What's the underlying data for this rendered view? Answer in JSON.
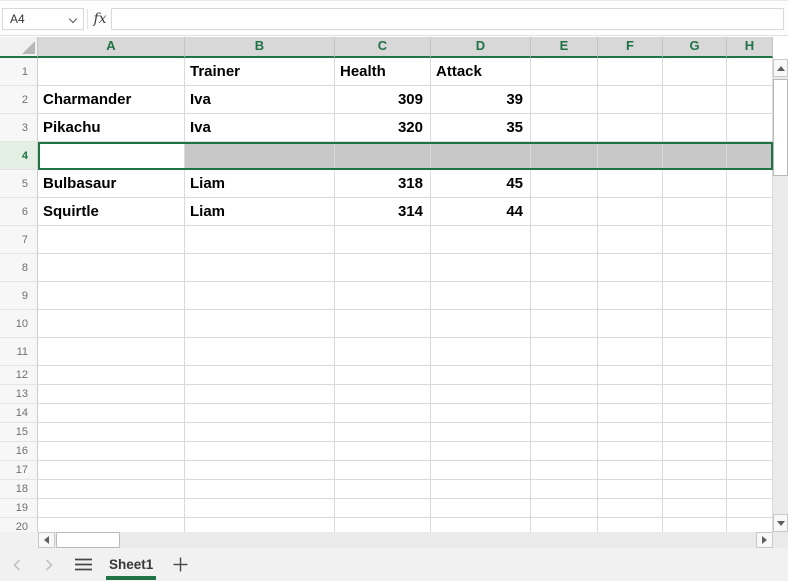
{
  "formula_bar": {
    "name_box_value": "A4",
    "fx_label": "fx",
    "formula_value": ""
  },
  "grid": {
    "column_headers": [
      "A",
      "B",
      "C",
      "D",
      "E",
      "F",
      "G",
      "H"
    ],
    "visible_rows": 20,
    "selection": {
      "type": "row",
      "row": 4,
      "active_cell": "A4"
    },
    "cells": {
      "B1": "Trainer",
      "C1": "Health",
      "D1": "Attack",
      "A2": "Charmander",
      "B2": "Iva",
      "C2": "309",
      "D2": "39",
      "A3": "Pikachu",
      "B3": "Iva",
      "C3": "320",
      "D3": "35",
      "A5": "Bulbasaur",
      "B5": "Liam",
      "C5": "318",
      "D5": "45",
      "A6": "Squirtle",
      "B6": "Liam",
      "C6": "314",
      "D6": "44"
    }
  },
  "sheet_tabs": {
    "tabs": [
      {
        "label": "Sheet1",
        "active": true
      }
    ],
    "add_tab_label": "+"
  },
  "icons": {
    "name_box_dropdown": "chevron-down",
    "select_all": "corner-triangle",
    "scroll_up": "triangle-up",
    "scroll_down": "triangle-down",
    "scroll_left": "triangle-left",
    "scroll_right": "triangle-right",
    "tabs_prev": "chevron-left",
    "tabs_next": "chevron-right",
    "sheet_menu": "hamburger-menu",
    "add_sheet": "plus"
  },
  "colors": {
    "accent_green": "#217346",
    "column_header_fill": "#d8d8d8",
    "selected_row_fill": "#c8c8c8",
    "selected_row_header_fill": "#e3efe3",
    "gridline": "#dadada"
  }
}
